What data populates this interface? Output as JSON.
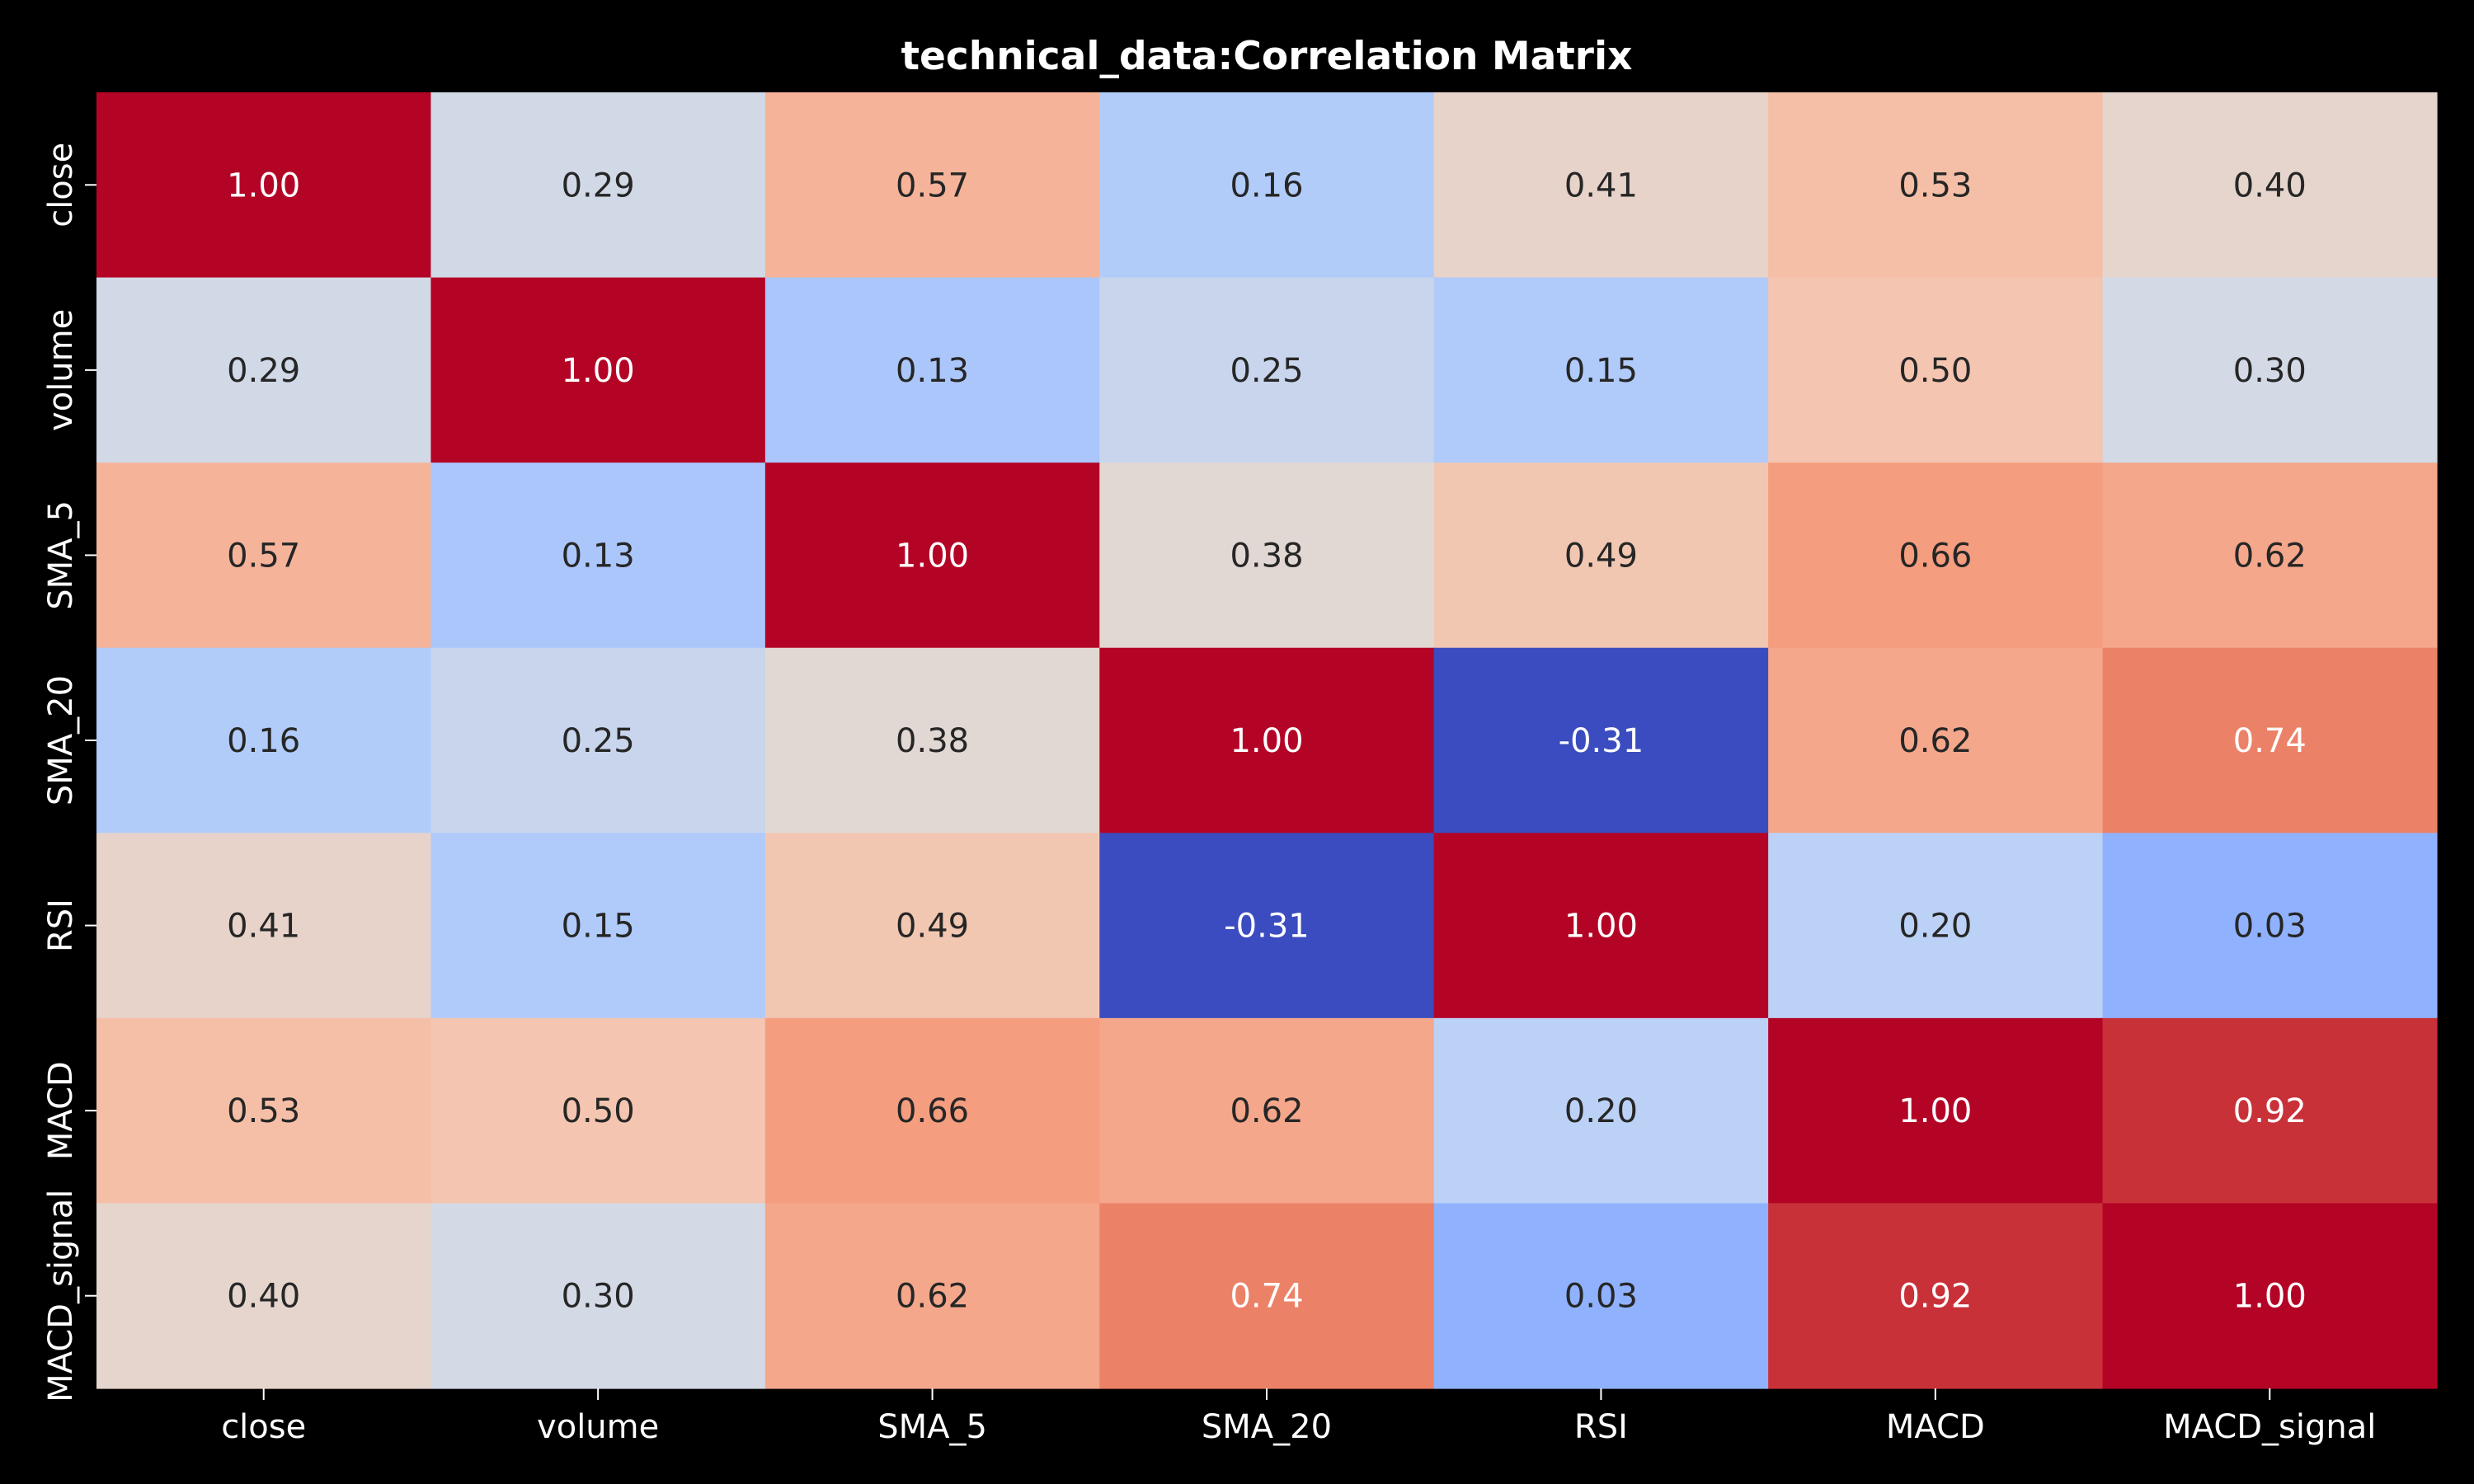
{
  "chart_data": {
    "type": "heatmap",
    "title": "technical_data:Correlation Matrix",
    "xlabel": "",
    "ylabel": "",
    "x_categories": [
      "close",
      "volume",
      "SMA_5",
      "SMA_20",
      "RSI",
      "MACD",
      "MACD_signal"
    ],
    "y_categories": [
      "close",
      "volume",
      "SMA_5",
      "SMA_20",
      "RSI",
      "MACD",
      "MACD_signal"
    ],
    "values": [
      [
        1.0,
        0.29,
        0.57,
        0.16,
        0.41,
        0.53,
        0.4
      ],
      [
        0.29,
        1.0,
        0.13,
        0.25,
        0.15,
        0.5,
        0.3
      ],
      [
        0.57,
        0.13,
        1.0,
        0.38,
        0.49,
        0.66,
        0.62
      ],
      [
        0.16,
        0.25,
        0.38,
        1.0,
        -0.31,
        0.62,
        0.74
      ],
      [
        0.41,
        0.15,
        0.49,
        -0.31,
        1.0,
        0.2,
        0.03
      ],
      [
        0.53,
        0.5,
        0.66,
        0.62,
        0.2,
        1.0,
        0.92
      ],
      [
        0.4,
        0.3,
        0.62,
        0.74,
        0.03,
        0.92,
        1.0
      ]
    ],
    "value_format": "0.00",
    "colormap": "coolwarm",
    "vmin": -0.31,
    "vmax": 1.0,
    "colorbar": false,
    "background_color": "#000000",
    "text_color": "#ffffff"
  }
}
